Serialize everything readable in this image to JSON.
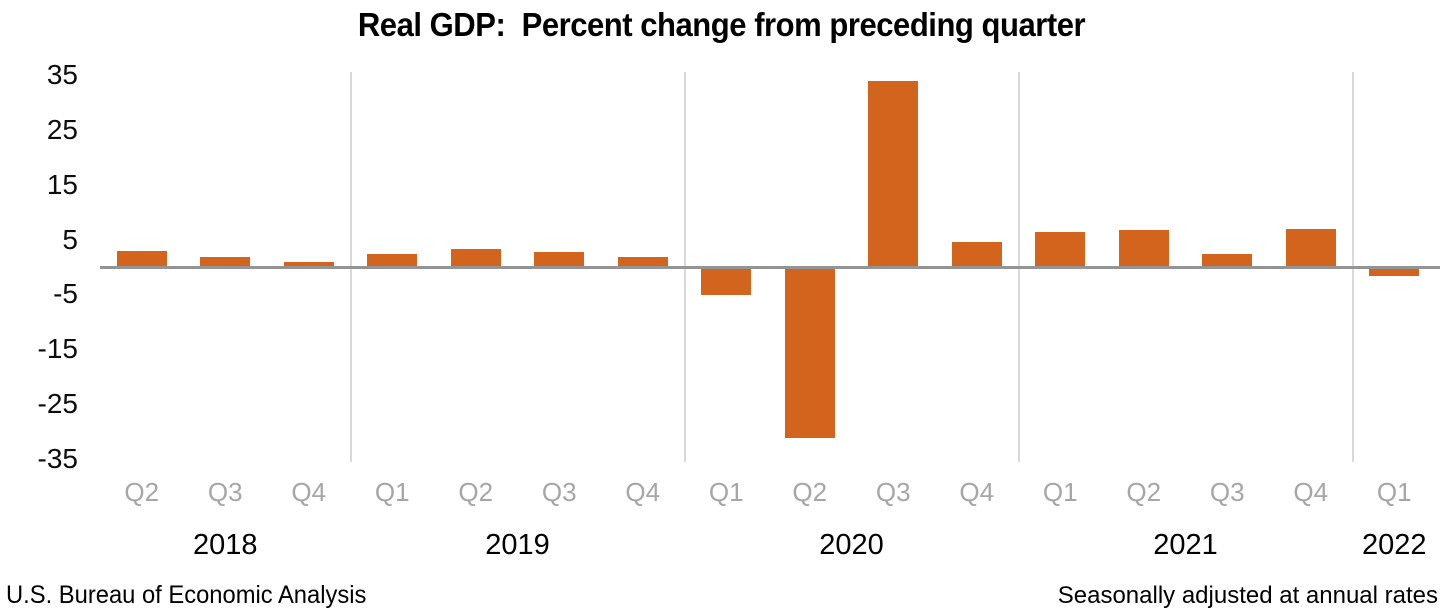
{
  "title": "Real GDP:  Percent change from preceding quarter",
  "footer": {
    "left": "U.S. Bureau of Economic Analysis",
    "right": "Seasonally adjusted at annual rates"
  },
  "colors": {
    "bar": "#D2641E",
    "zero_line": "#949494",
    "year_gridline": "#D9D9D9",
    "quarter_label": "#A6A6A6",
    "axis_text": "#0d0d0d",
    "title_text": "#000000"
  },
  "chart_data": {
    "type": "bar",
    "title": "Real GDP:  Percent change from preceding quarter",
    "categories": [
      "Q2 2018",
      "Q3 2018",
      "Q4 2018",
      "Q1 2019",
      "Q2 2019",
      "Q3 2019",
      "Q4 2019",
      "Q1 2020",
      "Q2 2020",
      "Q3 2020",
      "Q4 2020",
      "Q1 2021",
      "Q2 2021",
      "Q3 2021",
      "Q4 2021",
      "Q1 2022"
    ],
    "values": [
      2.9,
      1.9,
      0.9,
      2.4,
      3.2,
      2.8,
      1.9,
      -5.1,
      -31.2,
      33.8,
      4.5,
      6.3,
      6.7,
      2.3,
      6.9,
      -1.6
    ],
    "quarter_labels": [
      "Q2",
      "Q3",
      "Q4",
      "Q1",
      "Q2",
      "Q3",
      "Q4",
      "Q1",
      "Q2",
      "Q3",
      "Q4",
      "Q1",
      "Q2",
      "Q3",
      "Q4",
      "Q1"
    ],
    "year_groups": [
      {
        "label": "2018",
        "quarters": 3
      },
      {
        "label": "2019",
        "quarters": 4
      },
      {
        "label": "2020",
        "quarters": 4
      },
      {
        "label": "2021",
        "quarters": 4
      },
      {
        "label": "2022",
        "quarters": 1
      }
    ],
    "y_ticks": [
      35,
      25,
      15,
      5,
      -5,
      -15,
      -25,
      -35
    ],
    "ylim": [
      -35.5,
      35.5
    ],
    "xlabel": "",
    "ylabel": "",
    "grid": "vertical lines at year boundaries only",
    "legend": "none",
    "bar_color": "#D2641E",
    "source_note": "U.S. Bureau of Economic Analysis",
    "adjustment_note": "Seasonally adjusted at annual rates"
  }
}
